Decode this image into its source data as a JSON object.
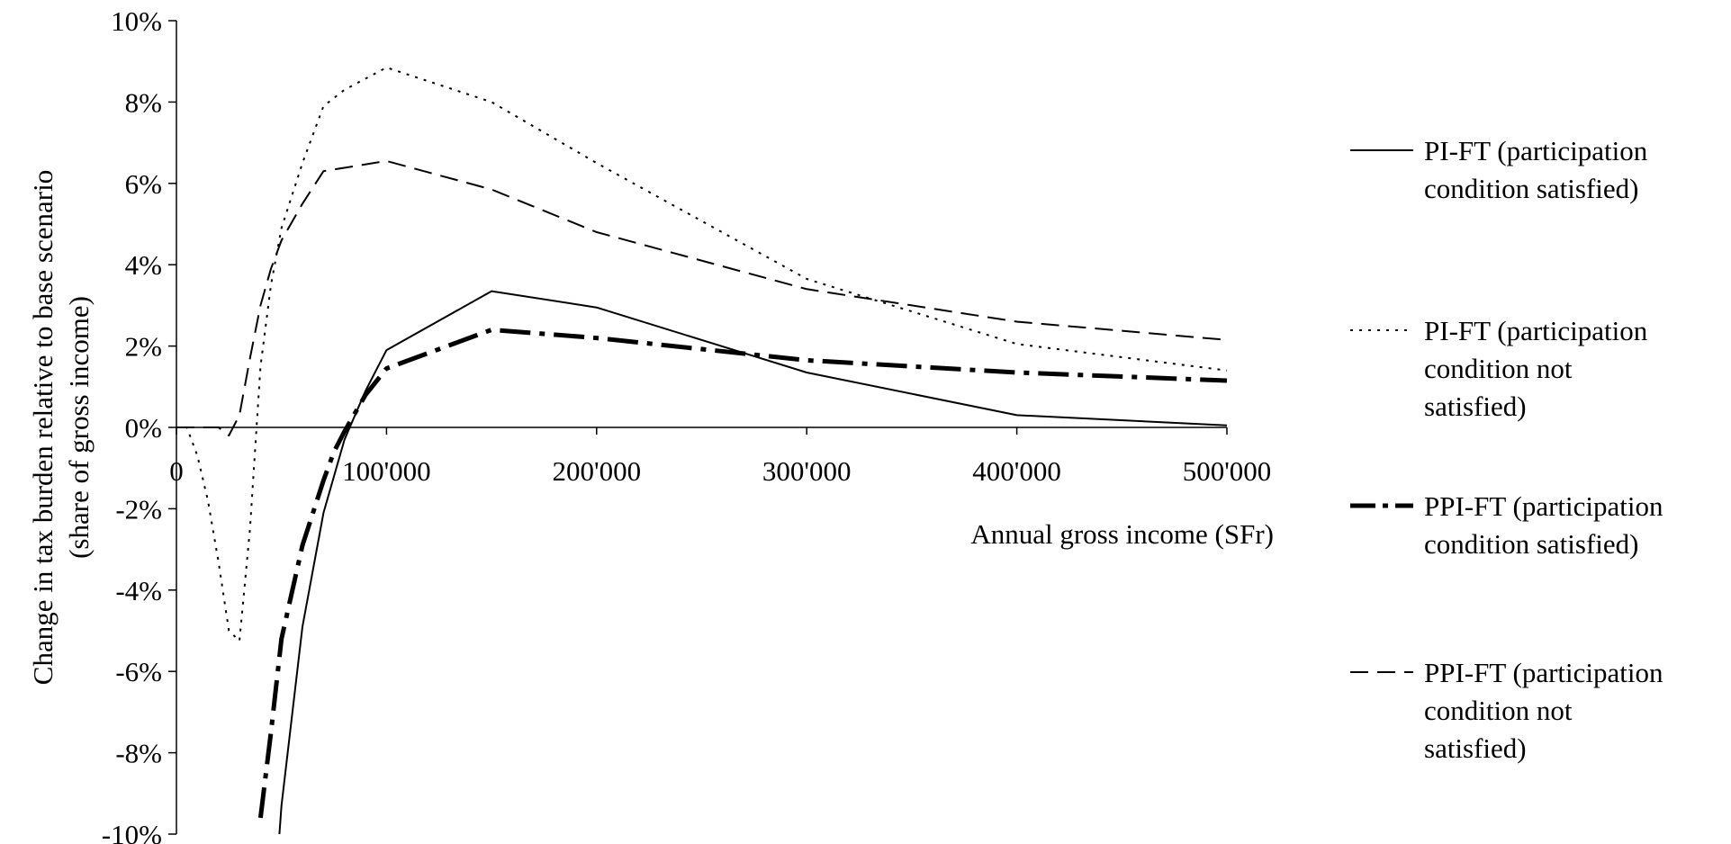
{
  "chart_data": {
    "type": "line",
    "xlabel": "Annual gross income (SFr)",
    "ylabel_lines": [
      "Change in tax burden relative to base scenario",
      "(share of gross income)"
    ],
    "xlim": [
      0,
      500000
    ],
    "ylim": [
      -10,
      10
    ],
    "x_ticks": [
      0,
      100000,
      200000,
      300000,
      400000,
      500000
    ],
    "x_tick_labels": [
      "0",
      "100'000",
      "200'000",
      "300'000",
      "400'000",
      "500'000"
    ],
    "y_ticks": [
      -10,
      -8,
      -6,
      -4,
      -2,
      0,
      2,
      4,
      6,
      8,
      10
    ],
    "y_tick_labels": [
      "-10%",
      "-8%",
      "-6%",
      "-4%",
      "-2%",
      "0%",
      "2%",
      "4%",
      "6%",
      "8%",
      "10%"
    ],
    "grid": false,
    "legend_position": "right",
    "series": [
      {
        "name_lines": [
          "PI-FT (participation",
          "condition satisfied)"
        ],
        "style": "solid",
        "points": [
          [
            49000,
            -10
          ],
          [
            50000,
            -9.3
          ],
          [
            60000,
            -4.9
          ],
          [
            70000,
            -2.1
          ],
          [
            80000,
            -0.3
          ],
          [
            90000,
            0.9
          ],
          [
            100000,
            1.9
          ],
          [
            150000,
            3.35
          ],
          [
            200000,
            2.95
          ],
          [
            300000,
            1.35
          ],
          [
            400000,
            0.3
          ],
          [
            500000,
            0.05
          ]
        ]
      },
      {
        "name_lines": [
          "PI-FT (participation",
          "condition not",
          "satisfied)"
        ],
        "style": "dotted",
        "points": [
          [
            0,
            0
          ],
          [
            5000,
            0
          ],
          [
            10000,
            -0.7
          ],
          [
            15000,
            -1.8
          ],
          [
            20000,
            -3.3
          ],
          [
            25000,
            -5.0
          ],
          [
            30000,
            -5.25
          ],
          [
            35000,
            -2.5
          ],
          [
            40000,
            1.5
          ],
          [
            45000,
            3.5
          ],
          [
            50000,
            4.9
          ],
          [
            60000,
            6.5
          ],
          [
            70000,
            7.9
          ],
          [
            80000,
            8.3
          ],
          [
            100000,
            8.85
          ],
          [
            150000,
            8.0
          ],
          [
            200000,
            6.5
          ],
          [
            300000,
            3.65
          ],
          [
            400000,
            2.05
          ],
          [
            500000,
            1.4
          ]
        ]
      },
      {
        "name_lines": [
          "PPI-FT (participation",
          "condition satisfied)"
        ],
        "style": "dashdot-thick",
        "points": [
          [
            40000,
            -9.6
          ],
          [
            45000,
            -7.5
          ],
          [
            50000,
            -5.2
          ],
          [
            60000,
            -2.9
          ],
          [
            70000,
            -1.3
          ],
          [
            75000,
            -0.6
          ],
          [
            80000,
            -0.1
          ],
          [
            90000,
            0.8
          ],
          [
            100000,
            1.45
          ],
          [
            150000,
            2.4
          ],
          [
            200000,
            2.2
          ],
          [
            300000,
            1.65
          ],
          [
            400000,
            1.35
          ],
          [
            500000,
            1.15
          ]
        ]
      },
      {
        "name_lines": [
          "PPI-FT (participation",
          "condition not",
          "satisfied)"
        ],
        "style": "dashed",
        "points": [
          [
            0,
            0
          ],
          [
            10000,
            0
          ],
          [
            20000,
            0
          ],
          [
            25000,
            -0.2
          ],
          [
            30000,
            0.3
          ],
          [
            35000,
            1.7
          ],
          [
            40000,
            3.0
          ],
          [
            45000,
            3.9
          ],
          [
            50000,
            4.6
          ],
          [
            60000,
            5.5
          ],
          [
            70000,
            6.3
          ],
          [
            100000,
            6.55
          ],
          [
            150000,
            5.85
          ],
          [
            200000,
            4.8
          ],
          [
            300000,
            3.4
          ],
          [
            400000,
            2.6
          ],
          [
            500000,
            2.15
          ]
        ]
      }
    ]
  }
}
